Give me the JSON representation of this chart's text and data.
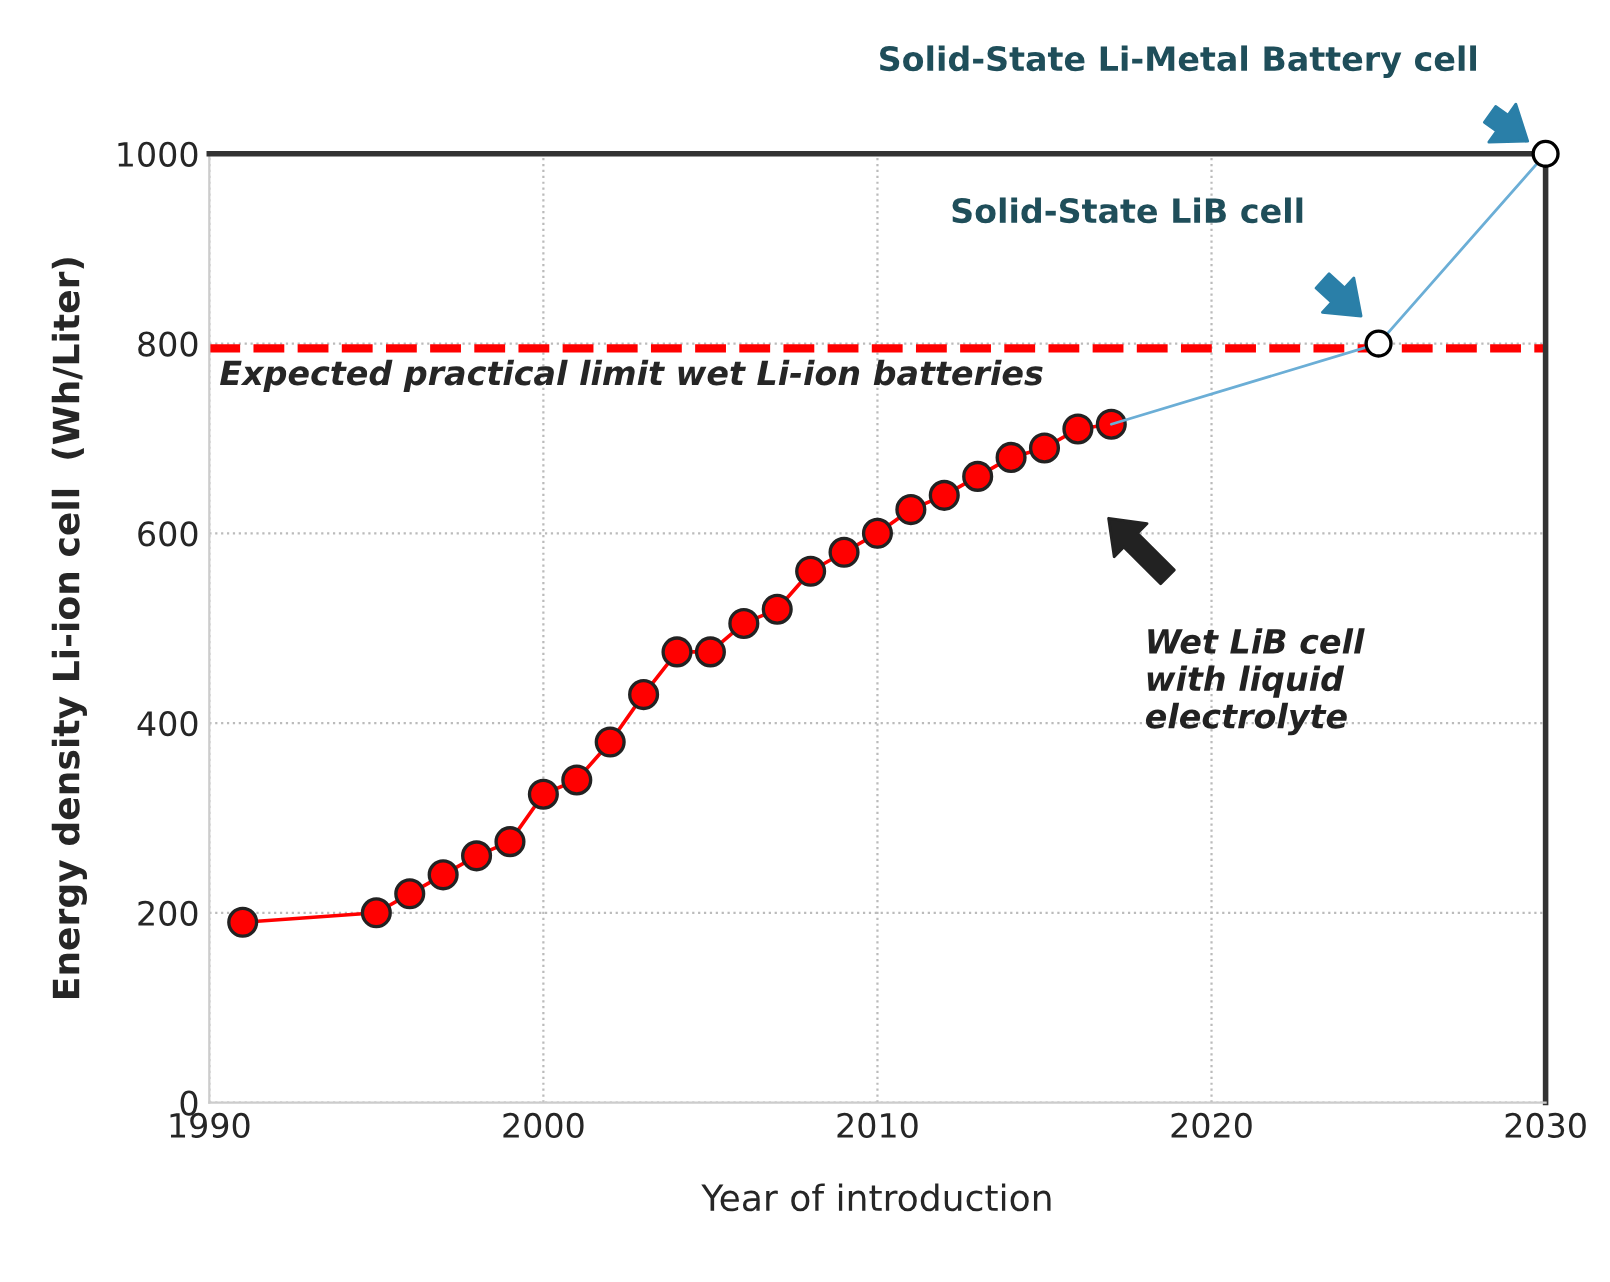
{
  "chart_data": {
    "type": "line",
    "xlabel": "Year of introduction",
    "ylabel": "Energy density Li-ion cell  (Wh/Liter)",
    "xlim": [
      1990,
      2030
    ],
    "xticks": [
      1990,
      2000,
      2010,
      2020,
      2030
    ],
    "ylim": [
      0,
      1000
    ],
    "yticks": [
      0,
      200,
      400,
      600,
      800,
      1000
    ],
    "grid": true,
    "series": [
      {
        "color": "#ff0000",
        "marker": "circle",
        "x": [
          1991,
          1995,
          1996,
          1997,
          1998,
          1999,
          2000,
          2001,
          2002,
          2003,
          2004,
          2005,
          2006,
          2007,
          2008,
          2009,
          2010,
          2011,
          2012,
          2013,
          2014,
          2015,
          2016,
          2017
        ],
        "values": [
          190,
          200,
          220,
          240,
          260,
          275,
          325,
          340,
          380,
          430,
          475,
          475,
          505,
          520,
          560,
          580,
          600,
          625,
          640,
          660,
          680,
          690,
          710,
          715
        ]
      },
      {
        "color": "#6baed6",
        "marker": "none",
        "x": [
          2017,
          2025,
          2030
        ],
        "values": [
          715,
          800,
          1000
        ]
      },
      {
        "type": "scatter",
        "color": "#000000",
        "marker": "circle",
        "x": [
          2025,
          2030
        ],
        "values": [
          800,
          1000
        ]
      }
    ],
    "ref_lines": [
      {
        "axis": "y",
        "value": 795,
        "label": "Expected practical limit wet Li-ion batteries",
        "color": "#ff0000",
        "line_style": "dashed"
      }
    ],
    "annotations": [
      "Solid-State Li-Metal Battery cell",
      "Solid-State LiB cell",
      "Wet LiB cell\nwith liquid\nelectrolyte"
    ]
  }
}
